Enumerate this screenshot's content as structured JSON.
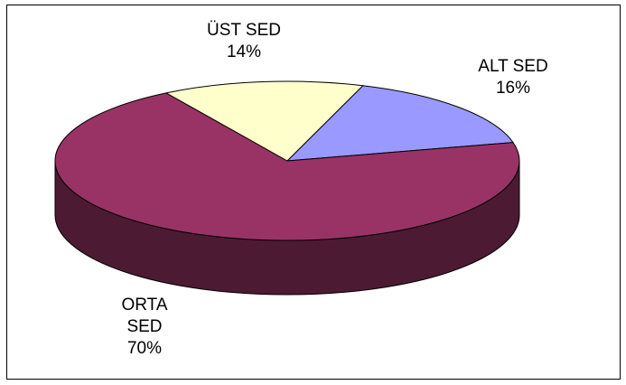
{
  "chart_data": {
    "type": "pie",
    "categories": [
      "ALT SED",
      "ORTA SED",
      "ÜST SED"
    ],
    "values": [
      16,
      70,
      14
    ],
    "value_labels": [
      "16%",
      "70%",
      "14%"
    ],
    "colors": [
      "#9999ff",
      "#993366",
      "#ffffcc"
    ]
  }
}
